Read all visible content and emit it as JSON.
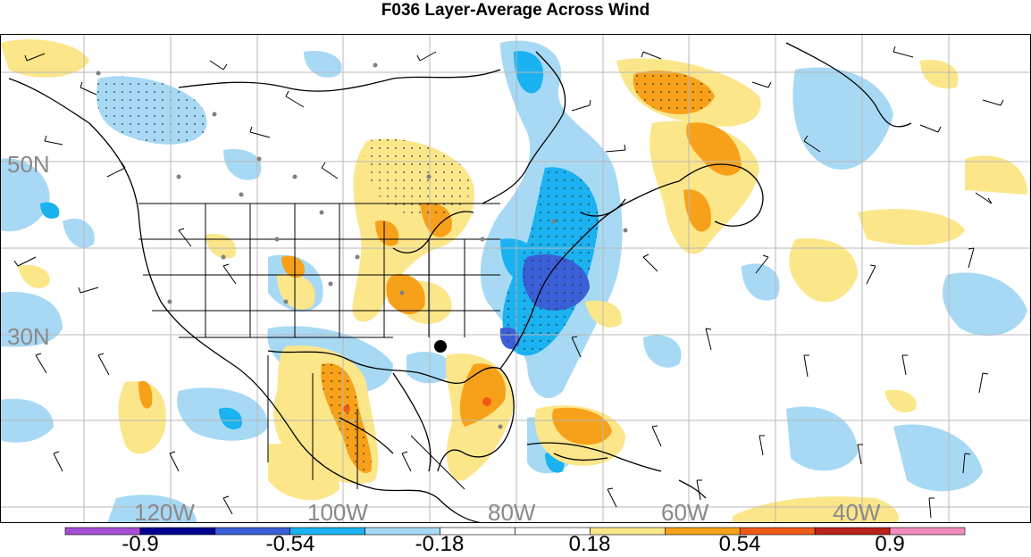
{
  "title": "F036 Layer-Average Across Wind",
  "lat_labels": [
    "50N",
    "30N"
  ],
  "lon_labels": [
    "120W",
    "100W",
    "80W",
    "60W",
    "40W"
  ],
  "colorbar": {
    "colors": [
      "#a64dd6",
      "#00008f",
      "#3a5fd6",
      "#1ab2f0",
      "#a7d9f5",
      "#ffffff",
      "#ffffff",
      "#fce68a",
      "#f7a11a",
      "#f05a18",
      "#b8231a",
      "#f28cbf"
    ],
    "labels": [
      "-0.9",
      "-0.54",
      "-0.18",
      "0.18",
      "0.54",
      "0.9"
    ]
  },
  "marker": "storm-location-dot"
}
